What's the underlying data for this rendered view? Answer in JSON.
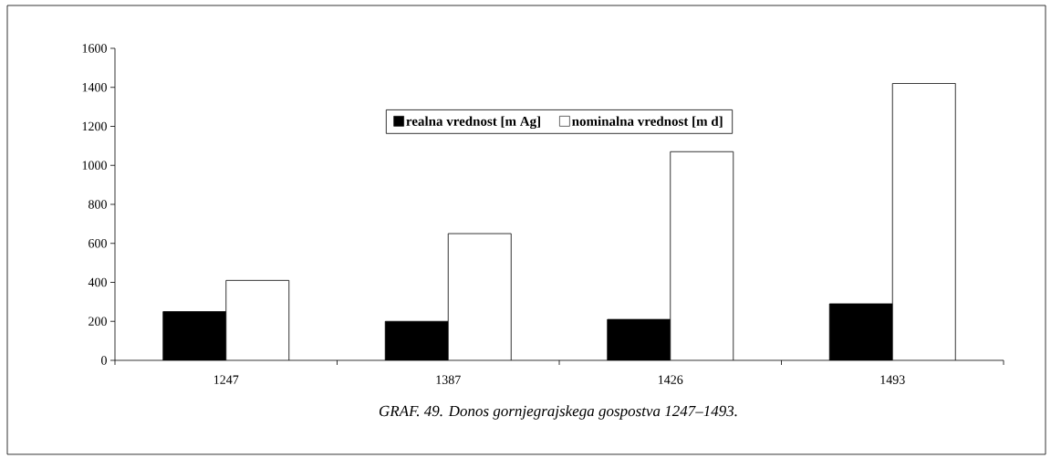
{
  "chart_data": {
    "type": "bar",
    "categories": [
      "1247",
      "1387",
      "1426",
      "1493"
    ],
    "series": [
      {
        "name": "realna vrednost [m Ag]",
        "color": "#000000",
        "values": [
          250,
          200,
          210,
          290
        ]
      },
      {
        "name": "nominalna vrednost [m d]",
        "color": "#ffffff",
        "values": [
          410,
          650,
          1070,
          1420
        ]
      }
    ],
    "ylim": [
      0,
      1600
    ],
    "yticks": [
      0,
      200,
      400,
      600,
      800,
      1000,
      1200,
      1400,
      1600
    ],
    "legend": "top",
    "annotations": [
      "GRAF. 49. Donos gornjegrajskega gospostva 1247–1493."
    ]
  }
}
